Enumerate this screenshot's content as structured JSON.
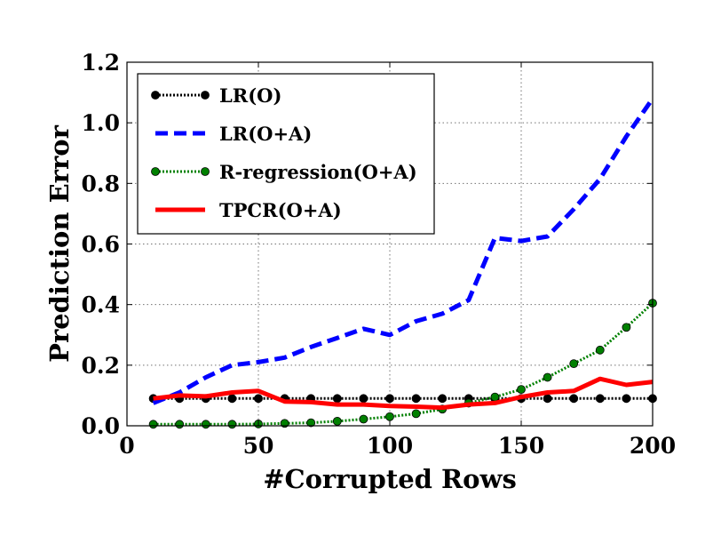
{
  "chart_data": {
    "type": "line",
    "title": "",
    "xlabel": "#Corrupted Rows",
    "ylabel": "Prediction Error",
    "xlim": [
      0,
      200
    ],
    "ylim": [
      0,
      1.2
    ],
    "xticks": [
      "0",
      "50",
      "100",
      "150",
      "200"
    ],
    "yticks": [
      "0.0",
      "0.2",
      "0.4",
      "0.6",
      "0.8",
      "1.0",
      "1.2"
    ],
    "grid": true,
    "legend_position": "top-left",
    "x": [
      10,
      20,
      30,
      40,
      50,
      60,
      70,
      80,
      90,
      100,
      110,
      120,
      130,
      140,
      150,
      160,
      170,
      180,
      190,
      200
    ],
    "series": [
      {
        "name": "LR(O)",
        "color": "#000000",
        "style": "dotted-markers",
        "values": [
          0.09,
          0.09,
          0.09,
          0.09,
          0.09,
          0.09,
          0.09,
          0.09,
          0.09,
          0.09,
          0.09,
          0.09,
          0.09,
          0.09,
          0.09,
          0.09,
          0.09,
          0.09,
          0.09,
          0.09
        ]
      },
      {
        "name": "LR(O+A)",
        "color": "#0000ff",
        "style": "dashed",
        "values": [
          0.075,
          0.11,
          0.16,
          0.2,
          0.21,
          0.225,
          0.26,
          0.29,
          0.32,
          0.3,
          0.345,
          0.37,
          0.415,
          0.62,
          0.61,
          0.625,
          0.715,
          0.815,
          0.955,
          1.08
        ]
      },
      {
        "name": "R-regression(O+A)",
        "color": "#008000",
        "style": "dotted-markers",
        "values": [
          0.005,
          0.005,
          0.005,
          0.005,
          0.006,
          0.008,
          0.01,
          0.015,
          0.022,
          0.03,
          0.04,
          0.055,
          0.075,
          0.095,
          0.12,
          0.16,
          0.205,
          0.25,
          0.325,
          0.405
        ]
      },
      {
        "name": "TPCR(O+A)",
        "color": "#ff0000",
        "style": "solid",
        "values": [
          0.09,
          0.1,
          0.097,
          0.11,
          0.115,
          0.08,
          0.078,
          0.07,
          0.07,
          0.065,
          0.063,
          0.06,
          0.07,
          0.075,
          0.095,
          0.11,
          0.115,
          0.155,
          0.135,
          0.145
        ]
      }
    ]
  }
}
